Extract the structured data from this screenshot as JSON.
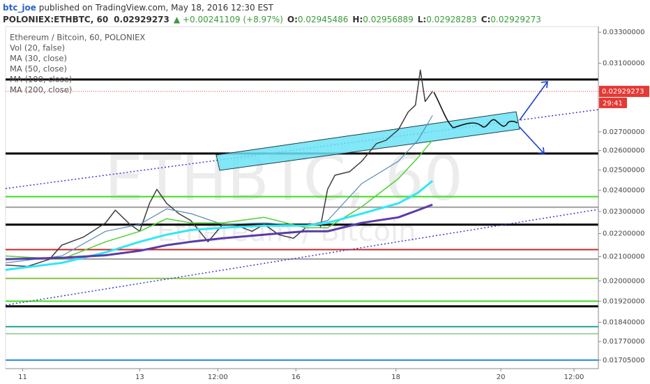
{
  "header": {
    "author": "btc_joe",
    "published": " published on TradingView.com, May 18, 2016 12:30 EST",
    "symbol": "POLONIEX:ETHBTC, 60",
    "last": "0.02929273",
    "change": "▲ +0.00241109 (+8.97%)",
    "open_label": "O:",
    "open": "0.02945486",
    "high_label": "H:",
    "high": "0.02956889",
    "low_label": "L:",
    "low": "0.02928283",
    "close_label": "C:",
    "close": "0.02929273"
  },
  "watermark": {
    "symbol": "ETHBTC, 60",
    "name": "Ethereum / Bitcoin"
  },
  "chart_data": {
    "type": "line",
    "log_scale": true,
    "volume_label": "Vol (20, false)",
    "last_price": 0.02929273,
    "countdown": "29:41",
    "xlim": [
      0,
      243
    ],
    "xticks": [
      {
        "value": 7,
        "label": "11"
      },
      {
        "value": 55,
        "label": "13"
      },
      {
        "value": 87,
        "label": "12:00"
      },
      {
        "value": 119,
        "label": "16"
      },
      {
        "value": 160,
        "label": "18"
      },
      {
        "value": 203,
        "label": "20"
      },
      {
        "value": 233,
        "label": "12:00"
      }
    ],
    "ylim": [
      0.01676,
      0.03338
    ],
    "yticks": [
      {
        "value": 0.033,
        "label": "0.03300000"
      },
      {
        "value": 0.031,
        "label": "0.03100000"
      },
      {
        "value": 0.027,
        "label": "0.02700000"
      },
      {
        "value": 0.026,
        "label": "0.02600000"
      },
      {
        "value": 0.025,
        "label": "0.02500000"
      },
      {
        "value": 0.024,
        "label": "0.02400000"
      },
      {
        "value": 0.023,
        "label": "0.02300000"
      },
      {
        "value": 0.022,
        "label": "0.02200000"
      },
      {
        "value": 0.021,
        "label": "0.02100000"
      },
      {
        "value": 0.02,
        "label": "0.02000000"
      },
      {
        "value": 0.0192,
        "label": "0.01920000"
      },
      {
        "value": 0.0184,
        "label": "0.01840000"
      },
      {
        "value": 0.0177,
        "label": "0.01770000"
      },
      {
        "value": 0.01705,
        "label": "0.01705000"
      }
    ],
    "levels": [
      {
        "price": 0.03,
        "color": "#000000"
      },
      {
        "price": 0.02585,
        "color": "#000000"
      },
      {
        "price": 0.0224,
        "color": "#000000"
      },
      {
        "price": 0.019,
        "color": "#000000"
      },
      {
        "price": 0.0213,
        "color": "#c62828"
      },
      {
        "price": 0.0237,
        "color": "#3ddc1e"
      },
      {
        "price": 0.0232,
        "color": "#9e9e9e"
      },
      {
        "price": 0.0209,
        "color": "#9e9e9e"
      },
      {
        "price": 0.0201,
        "color": "#8bc34a"
      },
      {
        "price": 0.0192,
        "color": "#3ddc1e"
      },
      {
        "price": 0.01824,
        "color": "#26a69a"
      },
      {
        "price": 0.01798,
        "color": "#a5d6a7"
      },
      {
        "price": 0.01705,
        "color": "#1e88e5"
      }
    ],
    "series": [
      {
        "name": "Ethereum / Bitcoin, 60, POLONIEX",
        "color": "#3d3d3d",
        "line_width": 1.5,
        "x": [
          0,
          9,
          18,
          23,
          32,
          41,
          45,
          51,
          55,
          59,
          62,
          66,
          71,
          76,
          83,
          89,
          95,
          101,
          106,
          112,
          118,
          123,
          129,
          132,
          135,
          141,
          146,
          152,
          156,
          161,
          165,
          168,
          170,
          172,
          175
        ],
        "values": [
          0.02065,
          0.02059,
          0.02089,
          0.02149,
          0.02185,
          0.02248,
          0.02306,
          0.02241,
          0.0221,
          0.02338,
          0.02405,
          0.02338,
          0.0229,
          0.02258,
          0.02164,
          0.02241,
          0.02235,
          0.0221,
          0.02241,
          0.02195,
          0.02179,
          0.02226,
          0.02226,
          0.02405,
          0.02474,
          0.02492,
          0.02545,
          0.02637,
          0.02655,
          0.02712,
          0.0281,
          0.0285,
          0.03058,
          0.0287,
          0.02929
        ]
      },
      {
        "name": "MA (30, close)",
        "color": "#5a8bb0",
        "line_width": 1.2,
        "x": [
          0,
          23,
          41,
          55,
          66,
          76,
          89,
          106,
          123,
          132,
          146,
          161,
          169,
          175
        ],
        "values": [
          0.02074,
          0.02103,
          0.0221,
          0.02241,
          0.02312,
          0.0229,
          0.02241,
          0.02248,
          0.02235,
          0.02258,
          0.02433,
          0.02545,
          0.02655,
          0.0279
        ]
      },
      {
        "name": "MA (50, close)",
        "color": "#4cd130",
        "line_width": 1.5,
        "x": [
          0,
          23,
          41,
          55,
          66,
          76,
          89,
          106,
          123,
          132,
          146,
          161,
          169,
          175
        ],
        "values": [
          0.02103,
          0.02089,
          0.02164,
          0.0221,
          0.02267,
          0.02248,
          0.02248,
          0.02273,
          0.02226,
          0.02226,
          0.02322,
          0.02457,
          0.02563,
          0.02655
        ]
      },
      {
        "name": "MA (100, close)",
        "color": "#2ee8f5",
        "line_width": 3,
        "x": [
          0,
          23,
          41,
          55,
          66,
          76,
          89,
          106,
          123,
          132,
          146,
          161,
          169,
          175
        ],
        "values": [
          0.02045,
          0.02074,
          0.02118,
          0.02164,
          0.02195,
          0.02216,
          0.02226,
          0.02235,
          0.02235,
          0.02248,
          0.0229,
          0.02338,
          0.02388,
          0.02446
        ]
      },
      {
        "name": "MA (200, close)",
        "color": "#5b3aa8",
        "line_width": 3,
        "x": [
          0,
          23,
          41,
          55,
          66,
          76,
          89,
          106,
          123,
          132,
          146,
          161,
          169,
          175
        ],
        "values": [
          0.02089,
          0.02095,
          0.02106,
          0.02125,
          0.02149,
          0.02164,
          0.02179,
          0.02195,
          0.0221,
          0.0221,
          0.02248,
          0.02273,
          0.02306,
          0.02332
        ]
      }
    ]
  }
}
